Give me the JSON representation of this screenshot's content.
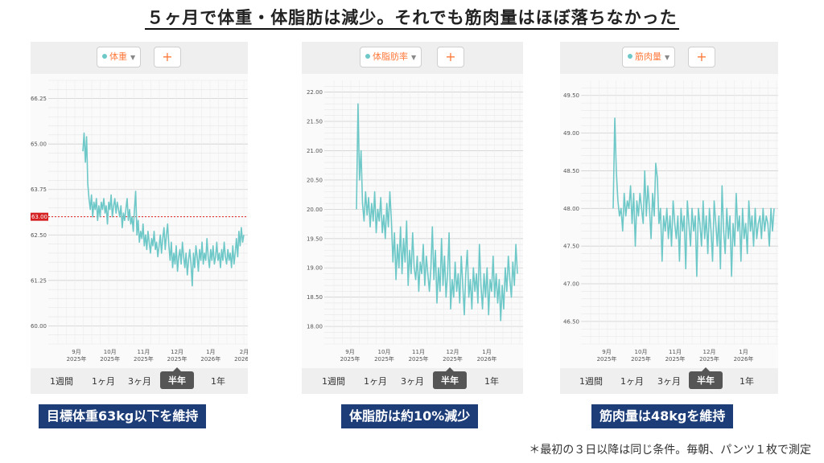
{
  "headline": "５ヶ月で体重・体脂肪は減少。それでも筋肉量はほぼ落ちなかった",
  "footnote": "＊最初の３日以降は同じ条件。毎朝、パンツ１枚で測定",
  "ui": {
    "add_label": "+",
    "ranges": [
      "1週間",
      "1ヶ月",
      "3ヶ月",
      "半年",
      "1年"
    ],
    "active_range": "半年",
    "accent": "#ff7a3d",
    "line_color": "#6ec8c8",
    "caption_bg": "#1d3d78"
  },
  "panels": [
    {
      "selector": "体重",
      "caption": "目標体重63kg以下を維持"
    },
    {
      "selector": "体脂肪率",
      "caption": "体脂肪は約10%減少"
    },
    {
      "selector": "筋肉量",
      "caption": "筋肉量は48kgを維持"
    }
  ],
  "chart_data": [
    {
      "type": "line",
      "series": [
        {
          "name": "体重",
          "values": [
            64.8,
            65.3,
            64.5,
            65.2,
            63.9,
            63.5,
            63.2,
            63.6,
            63.0,
            63.4,
            63.2,
            63.5,
            62.9,
            63.3,
            63.0,
            63.4,
            63.2,
            63.5,
            63.1,
            63.3,
            62.8,
            63.4,
            63.2,
            63.6,
            63.0,
            63.3,
            63.5,
            63.1,
            63.4,
            63.2,
            63.0,
            63.3,
            62.7,
            63.1,
            62.9,
            63.2,
            63.5,
            62.9,
            63.2,
            62.8,
            63.0,
            62.6,
            63.2,
            63.7,
            62.5,
            62.9,
            62.3,
            62.6,
            62.4,
            62.8,
            62.2,
            62.5,
            62.1,
            62.6,
            62.3,
            62.0,
            62.4,
            62.2,
            62.6,
            62.1,
            62.3,
            61.9,
            62.2,
            62.5,
            62.0,
            62.4,
            62.7,
            62.1,
            62.5,
            62.8,
            62.2,
            61.8,
            62.3,
            61.6,
            62.0,
            61.7,
            62.2,
            61.5,
            61.9,
            62.1,
            61.7,
            62.3,
            61.9,
            61.6,
            62.0,
            61.4,
            61.8,
            62.1,
            61.7,
            61.1,
            62.0,
            61.6,
            62.2,
            61.9,
            61.5,
            62.1,
            61.8,
            62.3,
            61.7,
            62.0,
            61.8,
            62.4,
            61.9,
            61.6,
            62.1,
            61.8,
            62.2,
            61.7,
            61.9,
            62.3,
            61.8,
            62.0,
            61.6,
            62.1,
            61.8,
            62.3,
            61.9,
            61.7,
            62.1,
            61.8,
            62.0,
            61.6,
            62.2,
            61.7,
            62.0,
            62.4,
            61.9,
            62.6,
            62.2,
            62.7,
            62.3,
            62.5
          ]
        }
      ],
      "yticks": [
        "66.25",
        "65.00",
        "63.75",
        "62.50",
        "61.25",
        "60.00"
      ],
      "ylim": [
        59.5,
        66.75
      ],
      "target": {
        "label": "63.00",
        "value": 63.0
      },
      "xticks": [
        [
          "9月",
          "2025年"
        ],
        [
          "10月",
          "2025年"
        ],
        [
          "11月",
          "2025年"
        ],
        [
          "12月",
          "2025年"
        ],
        [
          "1月",
          "2026年"
        ],
        [
          "2月",
          "2026年"
        ]
      ]
    },
    {
      "type": "line",
      "series": [
        {
          "name": "体脂肪率",
          "values": [
            20.0,
            21.8,
            20.5,
            21.0,
            20.1,
            19.8,
            20.3,
            19.9,
            20.2,
            19.7,
            20.1,
            19.8,
            20.3,
            19.6,
            20.0,
            19.8,
            20.2,
            19.6,
            19.9,
            19.5,
            20.1,
            19.7,
            20.3,
            19.8,
            19.1,
            19.6,
            18.8,
            19.4,
            19.0,
            19.7,
            18.9,
            19.5,
            19.1,
            19.8,
            18.7,
            19.3,
            18.9,
            19.6,
            19.0,
            18.8,
            19.2,
            18.6,
            19.1,
            18.9,
            19.4,
            18.7,
            19.2,
            18.9,
            18.6,
            19.0,
            19.7,
            18.8,
            19.3,
            18.4,
            19.0,
            18.6,
            19.5,
            18.7,
            19.2,
            18.5,
            18.9,
            19.6,
            18.3,
            18.8,
            18.5,
            19.1,
            18.6,
            18.9,
            18.4,
            19.2,
            18.7,
            18.2,
            18.9,
            19.3,
            18.5,
            18.8,
            18.3,
            19.0,
            18.6,
            18.9,
            18.4,
            19.4,
            18.7,
            18.3,
            18.9,
            18.5,
            19.0,
            18.2,
            18.8,
            18.6,
            19.2,
            18.5,
            18.9,
            18.4,
            18.8,
            18.1,
            18.7,
            18.3,
            19.0,
            18.6,
            19.2,
            18.8,
            18.5,
            19.1,
            18.7,
            19.4,
            18.9
          ]
        }
      ],
      "yticks": [
        "22.00",
        "21.50",
        "21.00",
        "20.50",
        "20.00",
        "19.50",
        "19.00",
        "18.50",
        "18.00"
      ],
      "ylim": [
        17.7,
        22.2
      ],
      "xticks": [
        [
          "9月",
          "2025年"
        ],
        [
          "10月",
          "2025年"
        ],
        [
          "11月",
          "2025年"
        ],
        [
          "12月",
          "2025年"
        ],
        [
          "1月",
          "2026年"
        ]
      ]
    },
    {
      "type": "line",
      "series": [
        {
          "name": "筋肉量",
          "values": [
            48.0,
            49.2,
            48.5,
            48.1,
            47.9,
            48.0,
            47.7,
            48.2,
            47.9,
            48.1,
            48.0,
            48.3,
            47.8,
            48.2,
            47.5,
            48.1,
            47.9,
            48.2,
            48.0,
            47.8,
            48.5,
            47.9,
            48.3,
            48.0,
            47.6,
            48.2,
            47.9,
            48.6,
            48.4,
            47.8,
            48.0,
            47.3,
            47.9,
            47.7,
            48.0,
            47.6,
            47.9,
            47.5,
            48.1,
            47.8,
            47.6,
            47.9,
            47.3,
            48.0,
            47.7,
            47.9,
            47.2,
            48.1,
            47.8,
            47.5,
            48.0,
            47.7,
            47.9,
            47.1,
            48.0,
            47.8,
            47.5,
            48.1,
            47.6,
            47.9,
            47.4,
            48.0,
            47.7,
            47.3,
            48.1,
            47.8,
            47.5,
            47.9,
            47.2,
            48.3,
            47.7,
            47.4,
            48.0,
            47.6,
            47.9,
            47.1,
            47.8,
            47.5,
            48.2,
            47.7,
            47.9,
            47.3,
            48.0,
            47.6,
            47.8,
            47.4,
            48.1,
            47.7,
            47.9,
            47.5,
            48.0,
            47.6,
            47.8,
            47.9,
            47.6,
            48.0,
            47.7,
            47.9,
            47.8,
            47.5,
            48.0,
            47.7,
            48.0
          ]
        }
      ],
      "yticks": [
        "49.50",
        "49.00",
        "48.50",
        "48.00",
        "47.50",
        "47.00",
        "46.50"
      ],
      "ylim": [
        46.2,
        49.7
      ],
      "xticks": [
        [
          "9月",
          "2025年"
        ],
        [
          "10月",
          "2025年"
        ],
        [
          "11月",
          "2025年"
        ],
        [
          "12月",
          "2025年"
        ],
        [
          "1月",
          "2026年"
        ]
      ]
    }
  ]
}
